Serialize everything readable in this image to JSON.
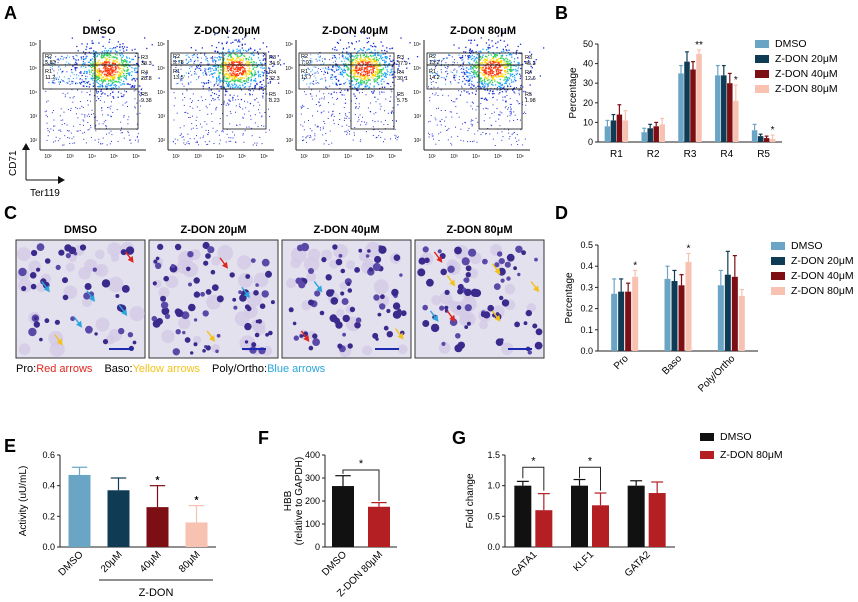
{
  "panels": {
    "A": "A",
    "B": "B",
    "C": "C",
    "D": "D",
    "E": "E",
    "F": "F",
    "G": "G"
  },
  "colors": {
    "dmso": "#6aa5c6",
    "z20": "#0f3b55",
    "z40": "#7d0e14",
    "z80": "#f7c2b1",
    "black": "#111111",
    "red": "#b41f24"
  },
  "flow": {
    "titles": [
      "DMSO",
      "Z-DON 20μM",
      "Z-DON 40μM",
      "Z-DON 80μM"
    ],
    "y_axis_label": "CD71",
    "x_axis_label": "Ter119",
    "gates": [
      {
        "R1": "11.2",
        "R2": "5.83",
        "R3": "38.3",
        "R4": "28.8",
        "R5": "9.38"
      },
      {
        "R1": "13.5",
        "R2": "5.78",
        "R3": "34.9",
        "R4": "32.3",
        "R5": "8.23"
      },
      {
        "R1": "13.7",
        "R2": "7.07",
        "R3": "37.9",
        "R4": "30.1",
        "R5": "5.75"
      },
      {
        "R1": "14.2",
        "R2": "13.2",
        "R3": "45.3",
        "R4": "12.6",
        "R5": "1.98"
      }
    ],
    "gate_labels": [
      "R1",
      "R2",
      "R3",
      "R4",
      "R5"
    ]
  },
  "legend4": [
    "DMSO",
    "Z-DON 20μM",
    "Z-DON 40μM",
    "Z-DON 80μM"
  ],
  "legend2": [
    "DMSO",
    "Z-DON 80μM"
  ],
  "chart_data": [
    {
      "id": "B",
      "type": "bar",
      "ylabel": "Percentage",
      "ylim": [
        0,
        50
      ],
      "yticks": [
        0,
        10,
        20,
        30,
        40,
        50
      ],
      "categories": [
        "R1",
        "R2",
        "R3",
        "R4",
        "R5"
      ],
      "series": [
        {
          "name": "DMSO",
          "values": [
            8,
            5,
            35,
            34,
            6
          ],
          "err": [
            3,
            2,
            4,
            5,
            3
          ]
        },
        {
          "name": "Z-DON 20μM",
          "values": [
            11,
            7,
            41,
            34,
            3
          ],
          "err": [
            3,
            2,
            5,
            5,
            1
          ]
        },
        {
          "name": "Z-DON 40μM",
          "values": [
            14,
            8,
            37,
            30,
            2
          ],
          "err": [
            5,
            2,
            4,
            5,
            1
          ]
        },
        {
          "name": "Z-DON 80μM",
          "values": [
            11,
            9,
            45,
            21,
            1.5
          ],
          "err": [
            5,
            3,
            2,
            8,
            2
          ]
        }
      ],
      "significance": [
        {
          "category": "R3",
          "series": 3,
          "label": "**"
        },
        {
          "category": "R4",
          "series": 3,
          "label": "*"
        },
        {
          "category": "R5",
          "series": 3,
          "label": "*"
        }
      ]
    },
    {
      "id": "D",
      "type": "bar",
      "ylabel": "Percentage",
      "ylim": [
        0,
        0.5
      ],
      "yticks": [
        0.0,
        0.1,
        0.2,
        0.3,
        0.4,
        0.5
      ],
      "categories": [
        "Pro",
        "Baso",
        "Poly/Ortho"
      ],
      "series": [
        {
          "name": "DMSO",
          "values": [
            0.27,
            0.34,
            0.31
          ],
          "err": [
            0.07,
            0.06,
            0.07
          ]
        },
        {
          "name": "Z-DON 20μM",
          "values": [
            0.28,
            0.33,
            0.36
          ],
          "err": [
            0.06,
            0.05,
            0.11
          ]
        },
        {
          "name": "Z-DON 40μM",
          "values": [
            0.28,
            0.31,
            0.35
          ],
          "err": [
            0.04,
            0.05,
            0.1
          ]
        },
        {
          "name": "Z-DON 80μM",
          "values": [
            0.35,
            0.42,
            0.26
          ],
          "err": [
            0.03,
            0.04,
            0.03
          ]
        }
      ],
      "significance": [
        {
          "category": "Pro",
          "series": 3,
          "label": "*"
        },
        {
          "category": "Baso",
          "series": 3,
          "label": "*"
        }
      ]
    },
    {
      "id": "E",
      "type": "bar",
      "ylabel": "Activity (uU/mL)",
      "ylim": [
        0,
        0.6
      ],
      "yticks": [
        0.0,
        0.2,
        0.4,
        0.6
      ],
      "categories": [
        "DMSO",
        "20μM",
        "40μM",
        "80μM"
      ],
      "group_label": "Z-DON",
      "values": [
        0.47,
        0.37,
        0.26,
        0.16
      ],
      "err": [
        0.05,
        0.08,
        0.14,
        0.11
      ],
      "significance": [
        {
          "category": "40μM",
          "label": "*"
        },
        {
          "category": "80μM",
          "label": "*"
        }
      ]
    },
    {
      "id": "F",
      "type": "bar",
      "ylabel": "HBB",
      "ylabel2": "(relative to GAPDH)",
      "ylim": [
        0,
        400
      ],
      "yticks": [
        0,
        100,
        200,
        300,
        400
      ],
      "categories": [
        "DMSO",
        "Z-DON 80μM"
      ],
      "values": [
        265,
        175
      ],
      "err": [
        45,
        18
      ],
      "significance": [
        {
          "between": [
            "DMSO",
            "Z-DON 80μM"
          ],
          "label": "*"
        }
      ]
    },
    {
      "id": "G",
      "type": "bar",
      "ylabel": "Fold change",
      "ylim": [
        0,
        1.5
      ],
      "yticks": [
        0.0,
        0.5,
        1.0,
        1.5
      ],
      "categories": [
        "GATA1",
        "KLF1",
        "GATA2"
      ],
      "series": [
        {
          "name": "DMSO",
          "values": [
            1.0,
            1.0,
            1.0
          ],
          "err": [
            0.07,
            0.1,
            0.08
          ]
        },
        {
          "name": "Z-DON 80μM",
          "values": [
            0.6,
            0.68,
            0.88
          ],
          "err": [
            0.27,
            0.2,
            0.18
          ]
        }
      ],
      "significance": [
        {
          "category": "GATA1",
          "label": "*"
        },
        {
          "category": "KLF1",
          "label": "*"
        }
      ]
    }
  ],
  "micro": {
    "titles": [
      "DMSO",
      "Z-DON 20μM",
      "Z-DON 40μM",
      "Z-DON 80μM"
    ],
    "legend": [
      {
        "text": "Pro:",
        "colored": "Red arrows",
        "color": "#e0261e"
      },
      {
        "text": "Baso:",
        "colored": "Yellow arrows",
        "color": "#f2c21b"
      },
      {
        "text": "Poly/Ortho:",
        "colored": "Blue arrows",
        "color": "#2aa6dc"
      }
    ]
  }
}
